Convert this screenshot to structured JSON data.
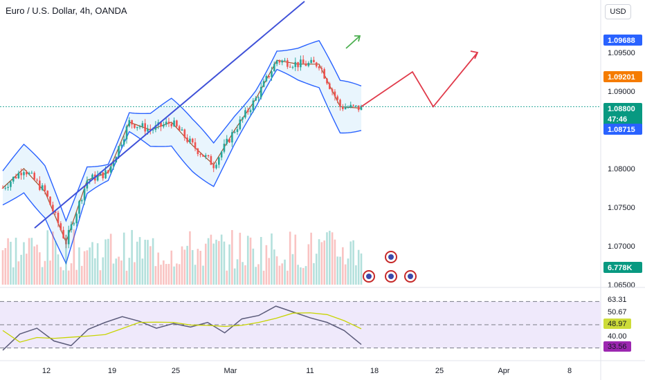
{
  "header": {
    "title": "Euro / U.S. Dollar, 4h, OANDA",
    "currency_button": "USD"
  },
  "colors": {
    "up": "#26a69a",
    "down": "#ef5350",
    "bollinger_band": "#2962ff",
    "bollinger_fill": "#e3f2fd",
    "trendline": "#3f51d8",
    "forecast": "#e03a4a",
    "rsi_line": "#5b5b7a",
    "rsi_ma": "#c7d400",
    "rsi_fill": "#efe9fb",
    "grid_dotted": "#26a69a"
  },
  "chart_data": [
    {
      "type": "line",
      "title": "Euro / U.S. Dollar, 4h, OANDA",
      "x_tick_labels": [
        "12",
        "19",
        "25",
        "Mar",
        "11",
        "18",
        "25",
        "Apr",
        "8"
      ],
      "y_tick_labels": [
        "1.09500",
        "1.09000",
        "1.08000",
        "1.07500",
        "1.07000",
        "1.06500"
      ],
      "ylim": [
        1.065,
        1.1
      ],
      "price_series": {
        "name": "Price",
        "x_index": [
          0,
          8,
          16,
          24,
          32,
          40,
          48,
          56,
          64,
          72,
          80,
          88,
          96,
          104,
          112,
          120,
          128,
          136
        ],
        "values": [
          1.0775,
          1.08,
          1.077,
          1.0705,
          1.0785,
          1.0795,
          1.086,
          1.085,
          1.086,
          1.083,
          1.0805,
          1.085,
          1.089,
          1.094,
          1.0935,
          1.0935,
          1.088,
          1.0878
        ]
      },
      "forecast_path": [
        1.088,
        1.0925,
        1.088,
        1.095
      ],
      "price_labels": [
        {
          "value": "1.09688",
          "color": "#2962ff"
        },
        {
          "value": "1.09201",
          "color": "#f57c00"
        },
        {
          "value": "1.08800",
          "color": "#089981",
          "sub": "47:46"
        },
        {
          "value": "1.08715",
          "color": "#2962ff"
        }
      ],
      "volume_label": "6.778K",
      "current_price_line": 1.088,
      "legend": "none",
      "grid": false
    },
    {
      "type": "line",
      "title": "",
      "y_tick_labels": [
        "63.31",
        "50.67",
        "40.00"
      ],
      "levels": [
        70,
        50,
        30
      ],
      "value_labels": [
        {
          "value": "48.97",
          "color": "#cddc39"
        },
        {
          "value": "33.56",
          "color": "#9c27b0"
        }
      ],
      "rsi_values": [
        28,
        42,
        47,
        36,
        32,
        46,
        52,
        57,
        53,
        47,
        51,
        48,
        52,
        43,
        55,
        58,
        66,
        61,
        56,
        52,
        45,
        33
      ]
    }
  ]
}
